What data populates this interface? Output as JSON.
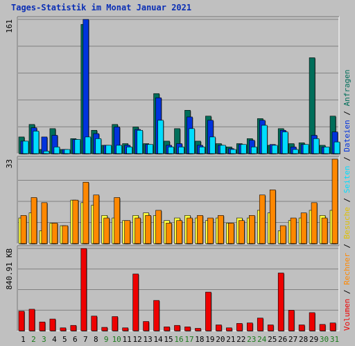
{
  "chart_data": {
    "title": "Tages-Statistik im Monat Januar 2021",
    "type": "bar",
    "days": [
      "1",
      "2",
      "3",
      "4",
      "5",
      "6",
      "7",
      "8",
      "9",
      "10",
      "11",
      "12",
      "13",
      "14",
      "15",
      "16",
      "17",
      "18",
      "19",
      "20",
      "21",
      "22",
      "23",
      "24",
      "25",
      "26",
      "27",
      "28",
      "29",
      "30",
      "31"
    ],
    "weekend_days": [
      "2",
      "3",
      "9",
      "10",
      "16",
      "17",
      "23",
      "24",
      "30",
      "31"
    ],
    "colors": {
      "weekday": "#000000",
      "weekend": "#1a7a1a",
      "title": "#0b2fb5",
      "background": "#c0c0c0",
      "plot_background": "#c0c0c0",
      "grid": "#808080"
    },
    "panels": [
      {
        "id": "hits",
        "ymax_label": "161",
        "ymax": 161,
        "series": [
          {
            "name": "Anfragen",
            "color": "#006e5a",
            "values": [
              20,
              35,
              5,
              30,
              5,
              18,
              155,
              28,
              10,
              35,
              12,
              32,
              12,
              72,
              15,
              30,
              52,
              15,
              45,
              12,
              8,
              12,
              18,
              42,
              10,
              30,
              12,
              13,
              115,
              10,
              45
            ]
          },
          {
            "name": "Dateien",
            "color": "#0033dd",
            "values": [
              15,
              31,
              20,
              22,
              5,
              17,
              161,
              24,
              10,
              32,
              10,
              29,
              11,
              67,
              10,
              12,
              44,
              10,
              40,
              10,
              6,
              11,
              16,
              40,
              11,
              28,
              8,
              11,
              22,
              8,
              26
            ]
          },
          {
            "name": "Seiten",
            "color": "#00ddff",
            "values": [
              15,
              27,
              3,
              8,
              5,
              17,
              20,
              18,
              10,
              10,
              8,
              28,
              11,
              40,
              8,
              8,
              30,
              8,
              20,
              10,
              5,
              11,
              8,
              34,
              10,
              26,
              5,
              11,
              18,
              8,
              14
            ]
          }
        ]
      },
      {
        "id": "visits",
        "ymax_label": "33",
        "ymax": 33,
        "series": [
          {
            "name": "Besuche",
            "color": "#ffff40",
            "values": [
              10,
              12,
              5,
              8,
              7,
              17,
              16,
              15,
              11,
              10,
              9,
              11,
              12,
              11,
              9,
              10,
              11,
              10,
              9,
              10,
              8,
              10,
              10,
              13,
              12,
              5,
              9,
              10,
              13,
              11,
              13
            ]
          },
          {
            "name": "Rechner",
            "color": "#ff8800",
            "values": [
              11,
              18,
              16,
              8,
              7,
              17,
              24,
              19,
              10,
              18,
              9,
              10,
              11,
              13,
              8,
              9,
              10,
              11,
              10,
              11,
              8,
              9,
              11,
              19,
              21,
              7,
              10,
              12,
              16,
              10,
              33
            ]
          }
        ]
      },
      {
        "id": "volume",
        "ymax_label": "840.91 KB",
        "ymax": 840.91,
        "series": [
          {
            "name": "Volumen",
            "color": "#ee0000",
            "values": [
              200,
              220,
              90,
              120,
              30,
              55,
              840,
              150,
              35,
              145,
              30,
              580,
              95,
              310,
              40,
              55,
              40,
              25,
              395,
              60,
              30,
              75,
              80,
              130,
              60,
              590,
              210,
              60,
              185,
              65,
              80
            ]
          }
        ]
      }
    ],
    "legend_right": [
      {
        "label": "Anfragen",
        "color": "#006e5a"
      },
      {
        "label": "Dateien",
        "color": "#0033dd"
      },
      {
        "label": "Seiten",
        "color": "#00ddff"
      },
      {
        "label": "Besuche",
        "color": "#e0c000"
      },
      {
        "label": "Rechner",
        "color": "#ff8800"
      },
      {
        "label": "Volumen",
        "color": "#ee0000"
      }
    ],
    "legend_separator": " / "
  }
}
